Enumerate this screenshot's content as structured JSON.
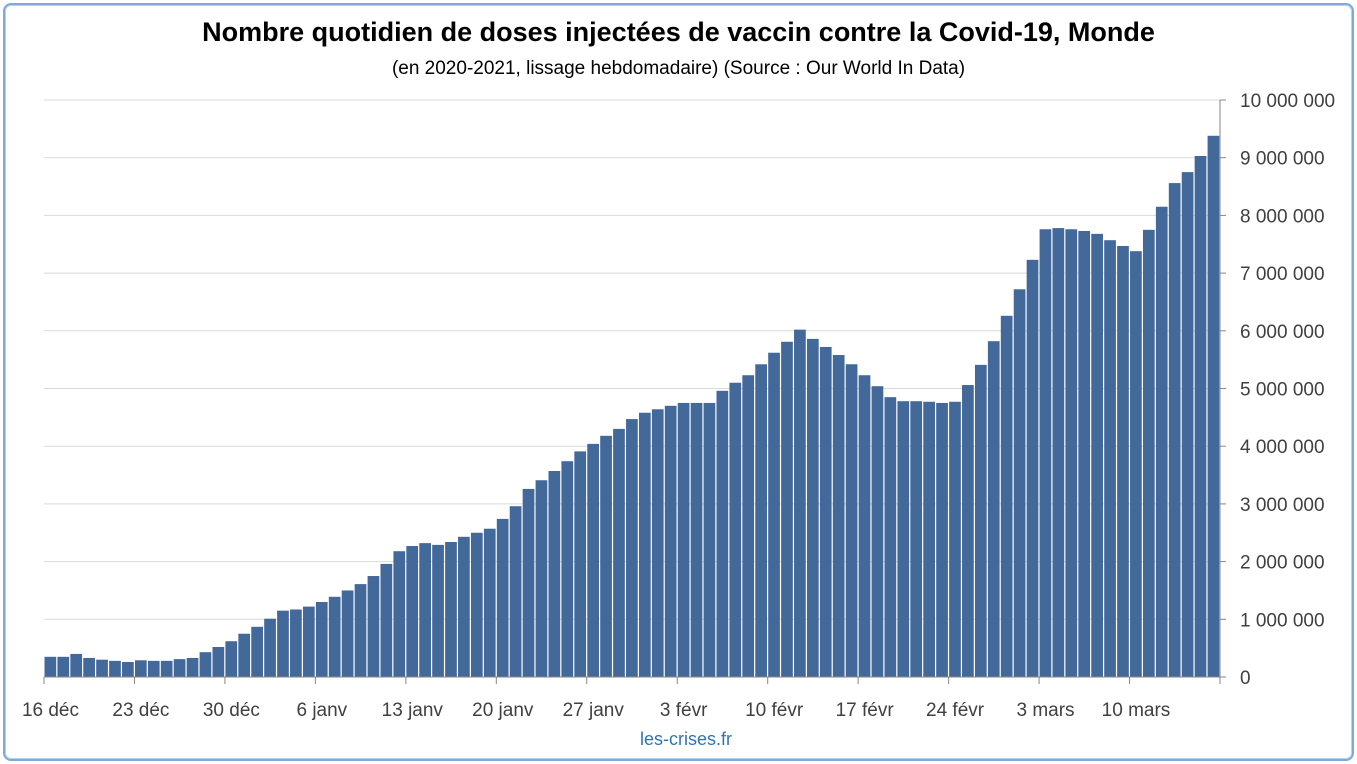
{
  "chart_data": {
    "type": "bar",
    "title": "Nombre quotidien de doses injectées de vaccin contre la Covid-19, Monde",
    "subtitle": "(en 2020-2021, lissage hebdomadaire) (Source : Our World In Data)",
    "xlabel": "",
    "ylabel": "",
    "ylim": [
      0,
      10000000
    ],
    "grid": true,
    "y_axis_side": "right",
    "y_ticks": [
      0,
      1000000,
      2000000,
      3000000,
      4000000,
      5000000,
      6000000,
      7000000,
      8000000,
      9000000,
      10000000
    ],
    "y_tick_labels": [
      "0",
      "1 000 000",
      "2 000 000",
      "3 000 000",
      "4 000 000",
      "5 000 000",
      "6 000 000",
      "7 000 000",
      "8 000 000",
      "9 000 000",
      "10 000 000"
    ],
    "x_tick_labels": [
      "16 déc",
      "23 déc",
      "30 déc",
      "6 janv",
      "13 janv",
      "20 janv",
      "27 janv",
      "3 févr",
      "10 févr",
      "17 févr",
      "24 févr",
      "3 mars",
      "10 mars"
    ],
    "x_tick_interval_days": 7,
    "first_date": "16 déc",
    "series": [
      {
        "name": "Doses quotidiennes",
        "color": "#43699a",
        "values": [
          350000,
          350000,
          400000,
          330000,
          300000,
          280000,
          260000,
          290000,
          280000,
          280000,
          310000,
          330000,
          430000,
          520000,
          620000,
          750000,
          870000,
          1010000,
          1150000,
          1170000,
          1220000,
          1300000,
          1390000,
          1500000,
          1610000,
          1750000,
          1960000,
          2180000,
          2270000,
          2320000,
          2290000,
          2340000,
          2430000,
          2500000,
          2570000,
          2740000,
          2960000,
          3260000,
          3410000,
          3570000,
          3740000,
          3910000,
          4040000,
          4180000,
          4300000,
          4470000,
          4580000,
          4640000,
          4700000,
          4750000,
          4750000,
          4750000,
          4960000,
          5100000,
          5230000,
          5420000,
          5620000,
          5810000,
          6020000,
          5860000,
          5720000,
          5580000,
          5420000,
          5230000,
          5040000,
          4850000,
          4780000,
          4780000,
          4770000,
          4750000,
          4770000,
          5060000,
          5410000,
          5820000,
          6260000,
          6720000,
          7230000,
          7760000,
          7780000,
          7760000,
          7730000,
          7680000,
          7570000,
          7470000,
          7380000,
          7750000,
          8150000,
          8560000,
          8750000,
          9030000,
          9380000
        ]
      }
    ]
  },
  "footer": "les-crises.fr"
}
